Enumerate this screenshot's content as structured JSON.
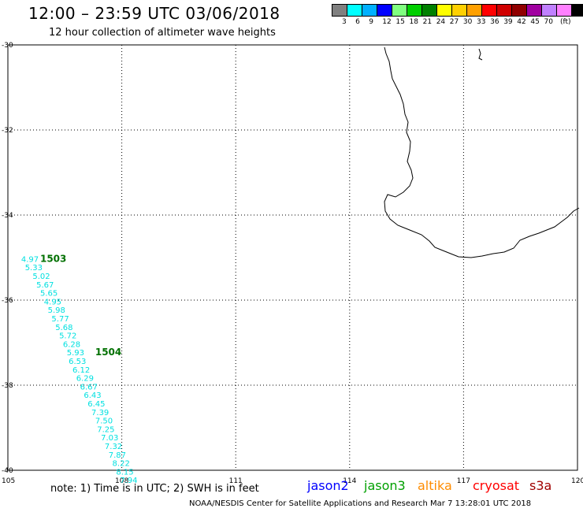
{
  "header": {
    "title": "12:00 – 23:59 UTC 03/06/2018",
    "subtitle": "12 hour collection of altimeter wave heights"
  },
  "scale": {
    "colors": [
      "#808080",
      "#00ffff",
      "#00b0ff",
      "#0000ff",
      "#80ff80",
      "#00d000",
      "#008000",
      "#ffff00",
      "#ffd000",
      "#ffa000",
      "#ff0000",
      "#d00000",
      "#900000",
      "#a000a0",
      "#c080ff",
      "#ff80ff",
      "#000000"
    ],
    "labels": [
      "3",
      "6",
      "9",
      "12",
      "15",
      "18",
      "21",
      "24",
      "27",
      "30",
      "33",
      "36",
      "39",
      "42",
      "45",
      "70"
    ],
    "unit": "(ft)"
  },
  "map": {
    "lon_ticks": [
      105,
      108,
      111,
      114,
      117,
      120
    ],
    "lat_ticks": [
      -30,
      -32,
      -34,
      -36,
      -38,
      -40
    ],
    "lon_labels": [
      "105",
      "108",
      "111",
      "114",
      "117",
      "120"
    ],
    "lat_labels": [
      "-30",
      "-32",
      "-34",
      "-36",
      "-38",
      "-40"
    ],
    "text_color": "#00e0e0",
    "track_label_color": "#007000",
    "track_labels": [
      {
        "text": "1503",
        "lon": 105.85,
        "lat": -35.1
      },
      {
        "text": "1504",
        "lon": 107.3,
        "lat": -37.3
      }
    ],
    "wave_heights": [
      {
        "v": "4.97",
        "lon": 105.35,
        "lat": -35.1
      },
      {
        "v": "5.33",
        "lon": 105.45,
        "lat": -35.3
      },
      {
        "v": "5.02",
        "lon": 105.65,
        "lat": -35.5
      },
      {
        "v": "5.67",
        "lon": 105.75,
        "lat": -35.7
      },
      {
        "v": "5.65",
        "lon": 105.85,
        "lat": -35.9
      },
      {
        "v": "4.95",
        "lon": 105.95,
        "lat": -36.1
      },
      {
        "v": "5.98",
        "lon": 106.05,
        "lat": -36.3
      },
      {
        "v": "5.77",
        "lon": 106.15,
        "lat": -36.5
      },
      {
        "v": "5.68",
        "lon": 106.25,
        "lat": -36.7
      },
      {
        "v": "5.72",
        "lon": 106.35,
        "lat": -36.9
      },
      {
        "v": "6.28",
        "lon": 106.45,
        "lat": -37.1
      },
      {
        "v": "5.93",
        "lon": 106.55,
        "lat": -37.3
      },
      {
        "v": "6.53",
        "lon": 106.6,
        "lat": -37.5
      },
      {
        "v": "6.12",
        "lon": 106.7,
        "lat": -37.7
      },
      {
        "v": "6.29",
        "lon": 106.8,
        "lat": -37.9
      },
      {
        "v": "6.67",
        "lon": 106.9,
        "lat": -38.1
      },
      {
        "v": "6.43",
        "lon": 107.0,
        "lat": -38.3
      },
      {
        "v": "6.45",
        "lon": 107.1,
        "lat": -38.5
      },
      {
        "v": "7.39",
        "lon": 107.2,
        "lat": -38.7
      },
      {
        "v": "7.50",
        "lon": 107.3,
        "lat": -38.9
      },
      {
        "v": "7.25",
        "lon": 107.35,
        "lat": -39.1
      },
      {
        "v": "7.03",
        "lon": 107.45,
        "lat": -39.3
      },
      {
        "v": "7.32",
        "lon": 107.55,
        "lat": -39.5
      },
      {
        "v": "7.87",
        "lon": 107.65,
        "lat": -39.7
      },
      {
        "v": "8.22",
        "lon": 107.75,
        "lat": -39.9
      },
      {
        "v": "8.15",
        "lon": 107.85,
        "lat": -40.1
      },
      {
        "v": "7.94",
        "lon": 107.95,
        "lat": -40.3
      }
    ]
  },
  "footer": {
    "note": "note:  1) Time is in UTC;  2) SWH is in feet",
    "satellites": [
      {
        "name": "jason2",
        "color": "#0000ff"
      },
      {
        "name": "jason3",
        "color": "#00a000"
      },
      {
        "name": "altika",
        "color": "#ff8c00"
      },
      {
        "name": "cryosat",
        "color": "#ff0000"
      },
      {
        "name": "s3a",
        "color": "#a00000"
      }
    ],
    "credit": "NOAA/NESDIS Center for Satellite Applications and Research    Mar  7 13:28:01 UTC 2018"
  }
}
